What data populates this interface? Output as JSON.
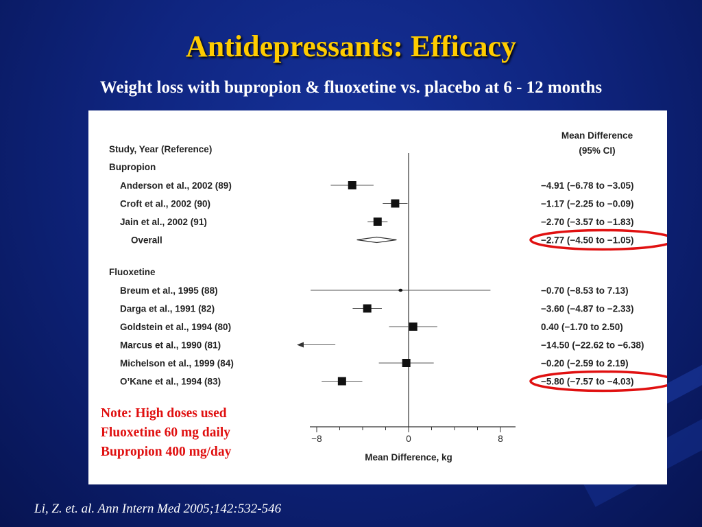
{
  "slide": {
    "title": "Antidepressants:  Efficacy",
    "subtitle": "Weight loss with bupropion & fluoxetine vs. placebo at 6 - 12 months",
    "citation": "Li, Z. et. al. Ann Intern Med 2005;142:532-546",
    "note": {
      "line1": "Note:  High doses used",
      "line2": "Fluoxetine 60 mg daily",
      "line3": "Bupropion 400 mg/day"
    },
    "colors": {
      "title": "#ffcc00",
      "note": "#e01010",
      "highlight": "#e01010",
      "background": "#0f2580"
    }
  },
  "chart_data": {
    "type": "forest",
    "xlabel": "Mean Difference, kg",
    "column_header_left": "Study, Year (Reference)",
    "column_header_right_line1": "Mean Difference",
    "column_header_right_line2": "(95% CI)",
    "xlim": [
      -8,
      8
    ],
    "xticks": [
      -8,
      0,
      8
    ],
    "xtick_labels": [
      "−8",
      "0",
      "8"
    ],
    "null_line": 0,
    "groups": [
      {
        "name": "Bupropion",
        "studies": [
          {
            "label": "Anderson et al., 2002 (89)",
            "mean": -4.91,
            "lo": -6.78,
            "hi": -3.05,
            "ci_text": "−4.91 (−6.78 to −3.05)"
          },
          {
            "label": "Croft et al., 2002 (90)",
            "mean": -1.17,
            "lo": -2.25,
            "hi": -0.09,
            "ci_text": "−1.17 (−2.25 to −0.09)"
          },
          {
            "label": "Jain et al., 2002 (91)",
            "mean": -2.7,
            "lo": -3.57,
            "hi": -1.83,
            "ci_text": "−2.70 (−3.57 to −1.83)"
          }
        ],
        "overall": {
          "label": "Overall",
          "mean": -2.77,
          "lo": -4.5,
          "hi": -1.05,
          "ci_text": "−2.77 (−4.50 to −1.05)",
          "highlighted": true
        }
      },
      {
        "name": "Fluoxetine",
        "studies": [
          {
            "label": "Breum et al., 1995 (88)",
            "mean": -0.7,
            "lo": -8.53,
            "hi": 7.13,
            "ci_text": "−0.70 (−8.53 to 7.13)"
          },
          {
            "label": "Darga et al., 1991 (82)",
            "mean": -3.6,
            "lo": -4.87,
            "hi": -2.33,
            "ci_text": "−3.60 (−4.87 to −2.33)"
          },
          {
            "label": "Goldstein et al., 1994 (80)",
            "mean": 0.4,
            "lo": -1.7,
            "hi": 2.5,
            "ci_text": "0.40 (−1.70 to 2.50)"
          },
          {
            "label": "Marcus et al., 1990 (81)",
            "mean": -14.5,
            "lo": -22.62,
            "hi": -6.38,
            "ci_text": "−14.50 (−22.62 to −6.38)"
          },
          {
            "label": "Michelson et al., 1999 (84)",
            "mean": -0.2,
            "lo": -2.59,
            "hi": 2.19,
            "ci_text": "−0.20 (−2.59 to 2.19)"
          },
          {
            "label": "O’Kane et al., 1994 (83)",
            "mean": -5.8,
            "lo": -7.57,
            "hi": -4.03,
            "ci_text": "−5.80 (−7.57 to −4.03)",
            "highlighted": true
          }
        ]
      }
    ]
  }
}
